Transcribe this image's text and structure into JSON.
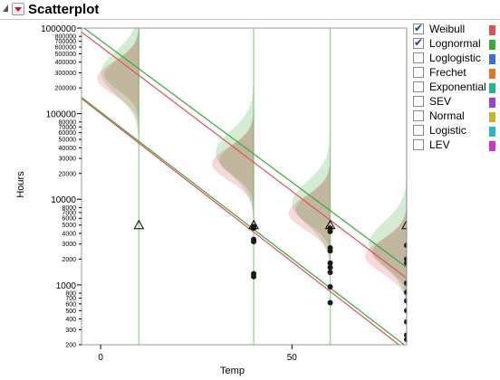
{
  "panel": {
    "title": "Scatterplot"
  },
  "legend": [
    {
      "label": "Weibull",
      "checked": true,
      "color": "#e0505a"
    },
    {
      "label": "Lognormal",
      "checked": true,
      "color": "#3aa83a"
    },
    {
      "label": "Loglogistic",
      "checked": false,
      "color": "#3b6fd8"
    },
    {
      "label": "Frechet",
      "checked": false,
      "color": "#e07a20"
    },
    {
      "label": "Exponential",
      "checked": false,
      "color": "#20b490"
    },
    {
      "label": "SEV",
      "checked": false,
      "color": "#9b3fd0"
    },
    {
      "label": "Normal",
      "checked": false,
      "color": "#c8b42a"
    },
    {
      "label": "Logistic",
      "checked": false,
      "color": "#28b8c0"
    },
    {
      "label": "LEV",
      "checked": false,
      "color": "#d030c8"
    }
  ],
  "chart_data": {
    "type": "scatter",
    "xlabel": "Temp",
    "ylabel": "Hours",
    "y_scale": "log",
    "xlim": [
      -5,
      80
    ],
    "ylim": [
      200,
      1000000
    ],
    "x_ticks": [
      0,
      50
    ],
    "y_major_ticks": [
      {
        "v": 1000000,
        "label": "1000000"
      },
      {
        "v": 100000,
        "label": "100000"
      },
      {
        "v": 10000,
        "label": "10000"
      },
      {
        "v": 1000,
        "label": "1000"
      }
    ],
    "y_minor_ticks": [
      {
        "v": 800000,
        "label": "800000"
      },
      {
        "v": 700000,
        "label": "700000"
      },
      {
        "v": 600000,
        "label": "600000"
      },
      {
        "v": 500000,
        "label": "500000"
      },
      {
        "v": 400000,
        "label": "400000"
      },
      {
        "v": 300000,
        "label": "300000"
      },
      {
        "v": 200000,
        "label": "200000"
      },
      {
        "v": 80000,
        "label": "80000"
      },
      {
        "v": 70000,
        "label": "70000"
      },
      {
        "v": 60000,
        "label": "60000"
      },
      {
        "v": 50000,
        "label": "50000"
      },
      {
        "v": 40000,
        "label": "40000"
      },
      {
        "v": 30000,
        "label": "30000"
      },
      {
        "v": 20000,
        "label": "20000"
      },
      {
        "v": 8000,
        "label": "8000"
      },
      {
        "v": 7000,
        "label": "7000"
      },
      {
        "v": 6000,
        "label": "6000"
      },
      {
        "v": 5000,
        "label": "5000"
      },
      {
        "v": 4000,
        "label": "4000"
      },
      {
        "v": 3000,
        "label": "3000"
      },
      {
        "v": 2000,
        "label": "2000"
      },
      {
        "v": 800,
        "label": "800"
      },
      {
        "v": 700,
        "label": "700"
      },
      {
        "v": 600,
        "label": "600"
      },
      {
        "v": 500,
        "label": "500"
      },
      {
        "v": 400,
        "label": "400"
      },
      {
        "v": 300,
        "label": "300"
      },
      {
        "v": 200,
        "label": "200"
      }
    ],
    "groups": [
      {
        "temp": 10,
        "censored_at": 5000,
        "failures": [],
        "mode_weibull": 300000,
        "mode_lognormal": 300000
      },
      {
        "temp": 40,
        "censored_at": 5000,
        "failures": [
          4800,
          4600,
          3400,
          3200,
          1350,
          1250
        ],
        "mode_weibull": 30000,
        "mode_lognormal": 35000
      },
      {
        "temp": 60,
        "censored_at": 5000,
        "failures": [
          4600,
          4200,
          2700,
          2500,
          1800,
          1600,
          1400,
          950,
          620
        ],
        "mode_weibull": 8000,
        "mode_lognormal": 9000
      },
      {
        "temp": 80,
        "censored_at": 5000,
        "failures": [
          2900,
          2000,
          1800,
          1050,
          820,
          650,
          500,
          370,
          260,
          230
        ],
        "mode_weibull": 2500,
        "mode_lognormal": 3000
      }
    ],
    "series": [
      {
        "name": "Weibull",
        "color": "#e0505a",
        "lines": [
          {
            "x": [
              -5,
              80
            ],
            "y": [
              900000,
              1200
            ]
          },
          {
            "x": [
              -5,
              80
            ],
            "y": [
              150000,
              170
            ]
          }
        ]
      },
      {
        "name": "Lognormal",
        "color": "#3aa83a",
        "lines": [
          {
            "x": [
              -5,
              80
            ],
            "y": [
              1050000,
              1600
            ]
          },
          {
            "x": [
              -5,
              80
            ],
            "y": [
              155000,
              190
            ]
          }
        ]
      }
    ]
  }
}
